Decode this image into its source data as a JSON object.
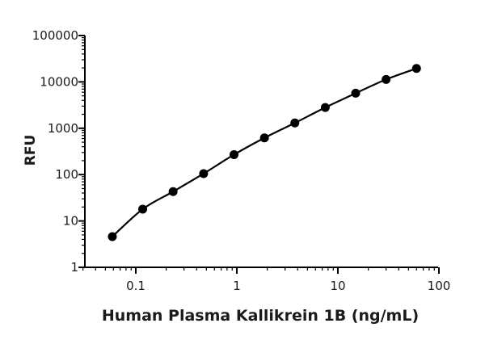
{
  "chart_data": {
    "type": "scatter",
    "title": "",
    "xlabel": "Human Plasma Kallikrein 1B (ng/mL)",
    "ylabel": "RFU",
    "xscale": "log",
    "yscale": "log",
    "xlim": [
      0.03,
      100
    ],
    "ylim": [
      1,
      100000
    ],
    "x_tick_labels": [
      "0.1",
      "1",
      "10",
      "100"
    ],
    "y_tick_labels": [
      "1",
      "10",
      "100",
      "1000",
      "10000",
      "100000"
    ],
    "grid": false,
    "legend": "none",
    "series": [
      {
        "x": [
          0.0586,
          0.117,
          0.234,
          0.469,
          0.938,
          1.875,
          3.75,
          7.5,
          15,
          30,
          60
        ],
        "y": [
          4.6,
          18,
          43,
          105,
          270,
          620,
          1300,
          2800,
          5700,
          11300,
          19500
        ],
        "marker": "circle",
        "color": "#000000",
        "fit_line": true
      }
    ]
  }
}
